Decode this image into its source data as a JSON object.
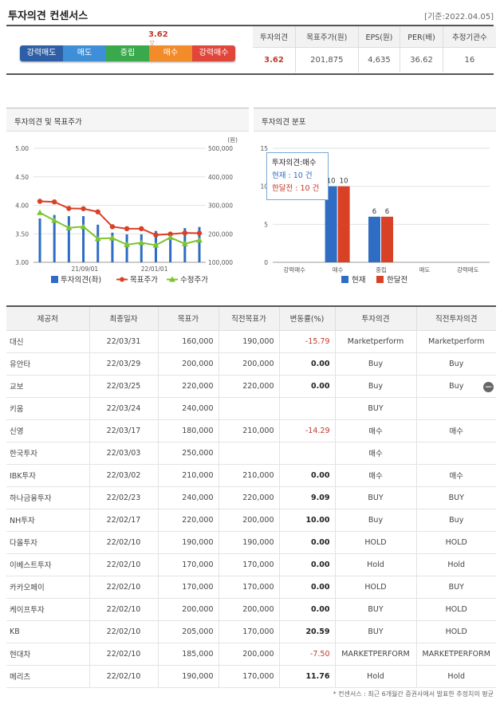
{
  "header": {
    "title": "투자의견 컨센서스",
    "date": "[기준:2022.04.05]"
  },
  "gauge": {
    "value": "3.62",
    "marker": "▽",
    "labels": [
      "강력매도",
      "매도",
      "중립",
      "매수",
      "강력매수"
    ],
    "colors": [
      "#2e5fa6",
      "#3e8fd8",
      "#3aa94b",
      "#f28b2a",
      "#e0463a"
    ]
  },
  "summary": {
    "headers": [
      "투자의견",
      "목표주가(원)",
      "EPS(원)",
      "PER(배)",
      "추정기관수"
    ],
    "values": [
      "3.62",
      "201,875",
      "4,635",
      "36.62",
      "16"
    ]
  },
  "left_panel": {
    "title": "투자의견 및 목표주가"
  },
  "right_panel": {
    "title": "투자의견 분포"
  },
  "tooltip": {
    "title": "투자의견:매수",
    "line1": "현재   : 10 건",
    "line2": "한달전 : 10 건"
  },
  "chart_data": [
    {
      "type": "line",
      "y_left_ticks": [
        "5.00",
        "4.50",
        "4.00",
        "3.50",
        "3.00"
      ],
      "y_right_ticks": [
        "500,000",
        "400,000",
        "300,000",
        "200,000",
        "100,000"
      ],
      "y_right_unit": "(원)",
      "x_ticks": [
        "21/09/01",
        "22/01/01"
      ],
      "ylim_left": [
        3.0,
        5.0
      ],
      "ylim_right": [
        100000,
        500000
      ],
      "legend": [
        "투자의견(좌)",
        "목표주가",
        "수정주가"
      ],
      "colors": {
        "opinion": "#2f6cc3",
        "target": "#d94126",
        "price": "#7dc42e"
      },
      "opinion_bars": [
        3.77,
        3.83,
        3.81,
        3.81,
        3.66,
        3.52,
        3.49,
        3.49,
        3.55,
        3.53,
        3.6,
        3.62
      ],
      "target_price": [
        314000,
        312000,
        289000,
        288000,
        277000,
        225000,
        218000,
        218000,
        196000,
        199000,
        203000,
        202000
      ],
      "close_price": [
        274000,
        247000,
        221000,
        225000,
        183000,
        185000,
        162000,
        169000,
        160000,
        187000,
        165000,
        178000
      ]
    },
    {
      "type": "bar",
      "categories": [
        "강력매수",
        "매수",
        "중립",
        "매도",
        "강력매도"
      ],
      "ylim": [
        0,
        15
      ],
      "y_ticks": [
        "15",
        "10",
        "5",
        "0"
      ],
      "legend": [
        "현재",
        "한달전"
      ],
      "series": [
        {
          "name": "현재",
          "color": "#2f6cc3",
          "values": [
            0,
            10,
            6,
            0,
            0
          ]
        },
        {
          "name": "한달전",
          "color": "#d94126",
          "values": [
            0,
            10,
            6,
            0,
            0
          ]
        }
      ]
    }
  ],
  "table": {
    "headers": [
      "제공처",
      "최종일자",
      "목표가",
      "직전목표가",
      "변동률(%)",
      "투자의견",
      "직전투자의견"
    ],
    "rows": [
      [
        "대신",
        "22/03/31",
        "160,000",
        "190,000",
        "-15.79",
        "Marketperform",
        "Marketperform"
      ],
      [
        "유안타",
        "22/03/29",
        "200,000",
        "200,000",
        "0.00",
        "Buy",
        "Buy"
      ],
      [
        "교보",
        "22/03/25",
        "220,000",
        "220,000",
        "0.00",
        "Buy",
        "Buy"
      ],
      [
        "키움",
        "22/03/24",
        "240,000",
        "",
        "",
        "BUY",
        ""
      ],
      [
        "신영",
        "22/03/17",
        "180,000",
        "210,000",
        "-14.29",
        "매수",
        "매수"
      ],
      [
        "한국투자",
        "22/03/03",
        "250,000",
        "",
        "",
        "매수",
        ""
      ],
      [
        "IBK투자",
        "22/03/02",
        "210,000",
        "210,000",
        "0.00",
        "매수",
        "매수"
      ],
      [
        "하나금융투자",
        "22/02/23",
        "240,000",
        "220,000",
        "9.09",
        "BUY",
        "BUY"
      ],
      [
        "NH투자",
        "22/02/17",
        "220,000",
        "200,000",
        "10.00",
        "Buy",
        "Buy"
      ],
      [
        "다올투자",
        "22/02/10",
        "190,000",
        "190,000",
        "0.00",
        "HOLD",
        "HOLD"
      ],
      [
        "이베스트투자",
        "22/02/10",
        "170,000",
        "170,000",
        "0.00",
        "Hold",
        "Hold"
      ],
      [
        "카카오페이",
        "22/02/10",
        "170,000",
        "170,000",
        "0.00",
        "HOLD",
        "BUY"
      ],
      [
        "케이프투자",
        "22/02/10",
        "200,000",
        "200,000",
        "0.00",
        "BUY",
        "HOLD"
      ],
      [
        "KB",
        "22/02/10",
        "205,000",
        "170,000",
        "20.59",
        "BUY",
        "HOLD"
      ],
      [
        "현대차",
        "22/02/10",
        "185,000",
        "200,000",
        "-7.50",
        "MARKETPERFORM",
        "MARKETPERFORM"
      ],
      [
        "메리츠",
        "22/02/10",
        "190,000",
        "170,000",
        "11.76",
        "Hold",
        "Hold"
      ]
    ]
  },
  "footnote": "* 컨센서스 : 최근 6개월간 증권사에서 발표한 추정치의 평균"
}
